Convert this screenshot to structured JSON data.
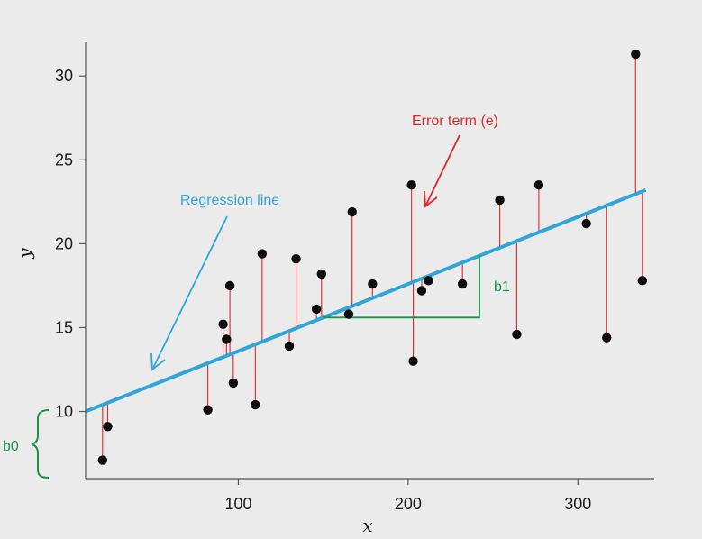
{
  "chart_data": {
    "type": "scatter",
    "xlabel": "x",
    "ylabel": "y",
    "xlim": [
      10,
      345
    ],
    "ylim": [
      6,
      32
    ],
    "x_ticks": [
      "100",
      "200",
      "300"
    ],
    "x_tick_values": [
      100,
      200,
      300
    ],
    "y_ticks": [
      "10",
      "15",
      "20",
      "25",
      "30"
    ],
    "y_tick_values": [
      10,
      15,
      20,
      25,
      30
    ],
    "grid": false,
    "points": [
      {
        "x": 20,
        "y": 7.1
      },
      {
        "x": 23,
        "y": 9.1
      },
      {
        "x": 82,
        "y": 10.1
      },
      {
        "x": 91,
        "y": 15.2
      },
      {
        "x": 93,
        "y": 14.3
      },
      {
        "x": 95,
        "y": 17.5
      },
      {
        "x": 97,
        "y": 11.7
      },
      {
        "x": 110,
        "y": 10.4
      },
      {
        "x": 114,
        "y": 19.4
      },
      {
        "x": 130,
        "y": 13.9
      },
      {
        "x": 134,
        "y": 19.1
      },
      {
        "x": 146,
        "y": 16.1
      },
      {
        "x": 149,
        "y": 18.2
      },
      {
        "x": 165,
        "y": 15.8
      },
      {
        "x": 167,
        "y": 21.9
      },
      {
        "x": 179,
        "y": 17.6
      },
      {
        "x": 202,
        "y": 23.5
      },
      {
        "x": 203,
        "y": 13.0
      },
      {
        "x": 208,
        "y": 17.2
      },
      {
        "x": 212,
        "y": 17.8
      },
      {
        "x": 232,
        "y": 17.6
      },
      {
        "x": 254,
        "y": 22.6
      },
      {
        "x": 264,
        "y": 14.6
      },
      {
        "x": 277,
        "y": 23.5
      },
      {
        "x": 305,
        "y": 21.2
      },
      {
        "x": 317,
        "y": 14.4
      },
      {
        "x": 334,
        "y": 31.3
      },
      {
        "x": 338,
        "y": 17.8
      }
    ],
    "regression_line": {
      "intercept": 9.6,
      "slope": 0.04,
      "x_start": 10,
      "x_end": 340,
      "color": "#2fa6d9"
    },
    "residual_color": "#e0262a",
    "point_color": "#0d0d0d",
    "annotations": {
      "regression_label": "Regression line",
      "regression_label_color": "#2fa6d9",
      "error_label": "Error term (e)",
      "error_label_color": "#e0262a",
      "slope_label": "b1",
      "intercept_label": "b0",
      "b_color": "#17944a",
      "slope_triangle": {
        "x1": 150,
        "x2": 242
      }
    }
  }
}
